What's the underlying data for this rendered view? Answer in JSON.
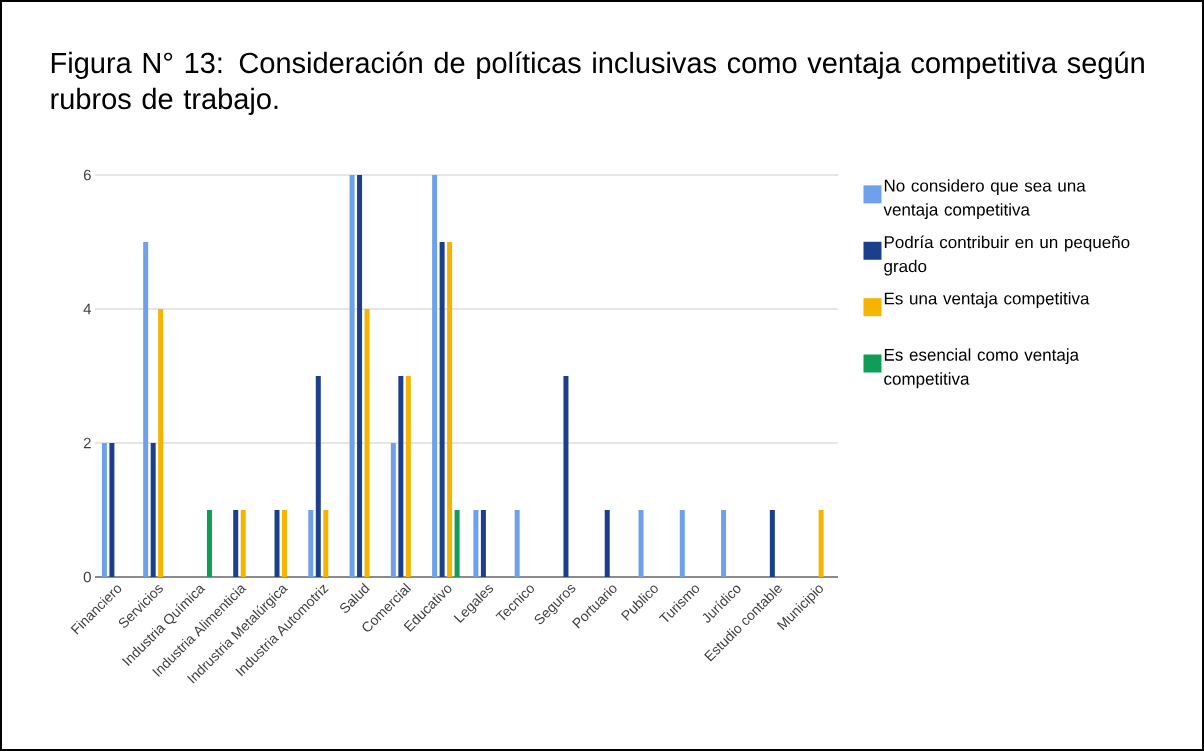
{
  "chart_data": {
    "type": "bar",
    "title": "Figura N° 13:  Consideración de políticas inclusivas como ventaja competitiva según rubros de trabajo.",
    "categories": [
      "Financiero",
      "Servicios",
      "Industria Química",
      "Industria Alimenticia",
      "Indrustria Metalúrgica",
      "Industria Automotriz",
      "Salud",
      "Comercial",
      "Educativo",
      "Legales",
      "Tecnico",
      "Seguros",
      "Portuario",
      "Publico",
      "Turismo",
      "Jurídico",
      "Estudio contable",
      "Municipio"
    ],
    "series": [
      {
        "name": "No considero que sea una ventaja competitiva",
        "color": "#6fa0eb",
        "values": [
          2,
          5,
          0,
          0,
          0,
          1,
          6,
          2,
          6,
          1,
          1,
          0,
          0,
          1,
          1,
          1,
          0,
          0
        ]
      },
      {
        "name": "Podría contribuir en un pequeño grado",
        "color": "#1c3f8c",
        "values": [
          2,
          2,
          0,
          1,
          1,
          3,
          6,
          3,
          5,
          1,
          0,
          3,
          1,
          0,
          0,
          0,
          1,
          0
        ]
      },
      {
        "name": "Es una ventaja competitiva",
        "color": "#f4b400",
        "values": [
          0,
          4,
          0,
          1,
          1,
          1,
          4,
          3,
          5,
          0,
          0,
          0,
          0,
          0,
          0,
          0,
          0,
          1
        ]
      },
      {
        "name": "Es esencial como ventaja competitiva",
        "color": "#0f9d58",
        "values": [
          0,
          0,
          1,
          0,
          0,
          0,
          0,
          0,
          1,
          0,
          0,
          0,
          0,
          0,
          0,
          0,
          0,
          0
        ]
      }
    ],
    "ylim": [
      0,
      6
    ],
    "yticks": [
      0,
      2,
      4,
      6
    ],
    "grid": "y",
    "legend": "right"
  }
}
